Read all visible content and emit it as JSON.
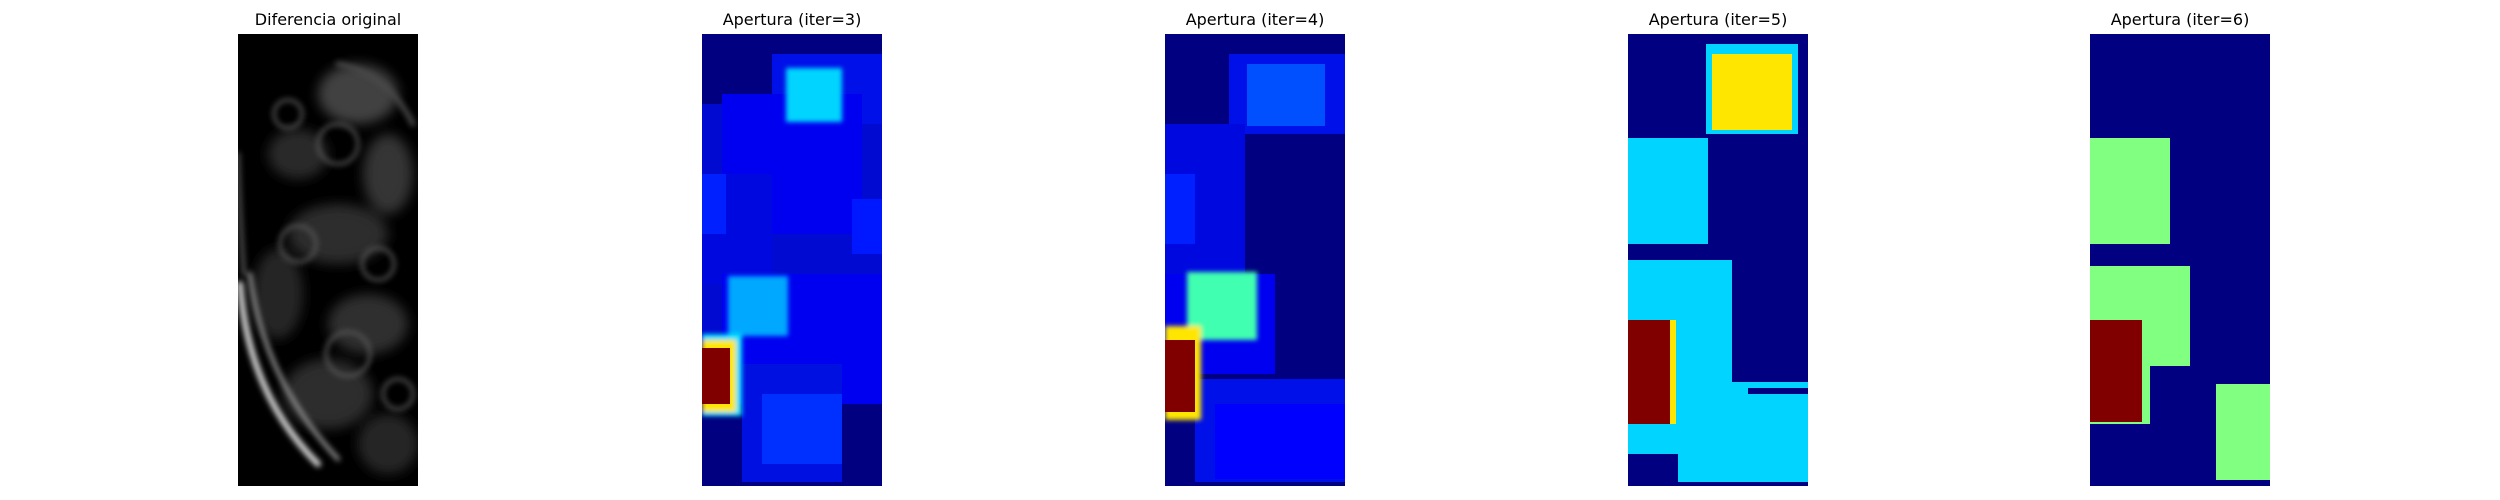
{
  "panels": [
    {
      "title": "Diferencia original"
    },
    {
      "title": "Apertura (iter=3)"
    },
    {
      "title": "Apertura (iter=4)"
    },
    {
      "title": "Apertura (iter=5)"
    },
    {
      "title": "Apertura (iter=6)"
    }
  ],
  "colors": {
    "jet_navy": "#000080",
    "jet_blue": "#0000ff",
    "jet_mid_blue": "#0040ff",
    "jet_cyan": "#00d4ff",
    "jet_aqua": "#40ffb0",
    "jet_green": "#80ff80",
    "jet_yellow": "#ffe600",
    "jet_darkred": "#800000",
    "background": "#ffffff",
    "grayscale_bg": "#000000"
  }
}
